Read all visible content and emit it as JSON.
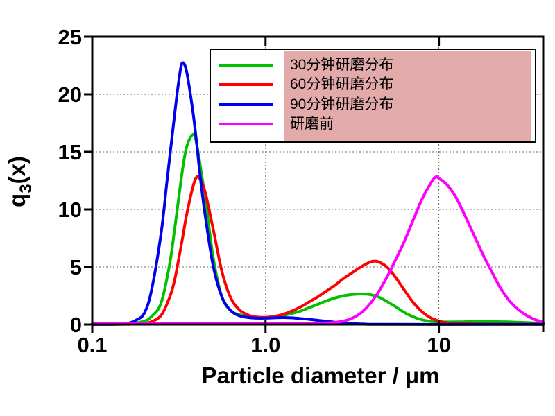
{
  "chart_data": {
    "type": "line",
    "title": "",
    "xlabel": "Particle diameter / μm",
    "ylabel": "q3(x)",
    "ylabel_parts": {
      "base": "q",
      "sub": "3",
      "rest": "(x)"
    },
    "xscale": "log",
    "xlim": [
      0.1,
      40
    ],
    "ylim": [
      0,
      25
    ],
    "xticks": [
      {
        "value": 0.1,
        "label": "0.1"
      },
      {
        "value": 1.0,
        "label": "1.0"
      },
      {
        "value": 10,
        "label": "10"
      }
    ],
    "yticks": [
      {
        "value": 0,
        "label": "0"
      },
      {
        "value": 5,
        "label": "5"
      },
      {
        "value": 10,
        "label": "10"
      },
      {
        "value": 15,
        "label": "15"
      },
      {
        "value": 20,
        "label": "20"
      },
      {
        "value": 25,
        "label": "25"
      }
    ],
    "grid": {
      "style": "dotted",
      "color": "#666666",
      "y_values": [
        5,
        10,
        15,
        20
      ],
      "x_values": [
        1.0,
        10
      ]
    },
    "legend": {
      "position": "top-inside",
      "highlight_color": "#E3AAAA",
      "items": [
        {
          "label": "30分钟研磨分布",
          "color": "#00C000"
        },
        {
          "label": "60分钟研磨分布",
          "color": "#FF0000"
        },
        {
          "label": "90分钟研磨分布",
          "color": "#0000EE"
        },
        {
          "label": "研磨前",
          "color": "#FF00FF"
        }
      ]
    },
    "series": [
      {
        "name": "30分钟研磨分布",
        "color": "#00C000",
        "points": [
          [
            0.1,
            0.02
          ],
          [
            0.16,
            0.05
          ],
          [
            0.2,
            0.3
          ],
          [
            0.22,
            0.7
          ],
          [
            0.25,
            1.9
          ],
          [
            0.28,
            5.3
          ],
          [
            0.3,
            8.5
          ],
          [
            0.33,
            13.2
          ],
          [
            0.35,
            15.4
          ],
          [
            0.38,
            16.5
          ],
          [
            0.4,
            15.7
          ],
          [
            0.45,
            10.8
          ],
          [
            0.5,
            5.7
          ],
          [
            0.56,
            2.4
          ],
          [
            0.63,
            1.2
          ],
          [
            0.71,
            0.85
          ],
          [
            0.8,
            0.68
          ],
          [
            0.89,
            0.62
          ],
          [
            1.0,
            0.6
          ],
          [
            1.12,
            0.65
          ],
          [
            1.26,
            0.78
          ],
          [
            1.41,
            0.95
          ],
          [
            1.58,
            1.15
          ],
          [
            1.78,
            1.45
          ],
          [
            2.0,
            1.75
          ],
          [
            2.24,
            2.05
          ],
          [
            2.51,
            2.3
          ],
          [
            2.82,
            2.5
          ],
          [
            3.16,
            2.6
          ],
          [
            3.55,
            2.65
          ],
          [
            3.98,
            2.6
          ],
          [
            4.47,
            2.4
          ],
          [
            5.01,
            2.0
          ],
          [
            5.62,
            1.55
          ],
          [
            6.31,
            1.05
          ],
          [
            7.08,
            0.68
          ],
          [
            7.94,
            0.42
          ],
          [
            8.91,
            0.28
          ],
          [
            10,
            0.22
          ],
          [
            12.6,
            0.22
          ],
          [
            15.8,
            0.25
          ],
          [
            20,
            0.25
          ],
          [
            25.1,
            0.22
          ],
          [
            31.6,
            0.17
          ],
          [
            40,
            0.1
          ]
        ]
      },
      {
        "name": "60分钟研磨分布",
        "color": "#FF0000",
        "points": [
          [
            0.1,
            0.01
          ],
          [
            0.18,
            0.03
          ],
          [
            0.2,
            0.08
          ],
          [
            0.22,
            0.25
          ],
          [
            0.25,
            0.8
          ],
          [
            0.28,
            2.4
          ],
          [
            0.3,
            4.0
          ],
          [
            0.33,
            7.3
          ],
          [
            0.35,
            9.5
          ],
          [
            0.38,
            11.9
          ],
          [
            0.4,
            12.8
          ],
          [
            0.42,
            12.6
          ],
          [
            0.45,
            11.4
          ],
          [
            0.5,
            8.2
          ],
          [
            0.56,
            4.6
          ],
          [
            0.63,
            2.3
          ],
          [
            0.71,
            1.25
          ],
          [
            0.8,
            0.8
          ],
          [
            0.89,
            0.65
          ],
          [
            1.0,
            0.62
          ],
          [
            1.12,
            0.7
          ],
          [
            1.26,
            0.88
          ],
          [
            1.41,
            1.15
          ],
          [
            1.58,
            1.5
          ],
          [
            1.78,
            1.95
          ],
          [
            2.0,
            2.4
          ],
          [
            2.24,
            2.9
          ],
          [
            2.51,
            3.4
          ],
          [
            2.82,
            4.0
          ],
          [
            3.16,
            4.5
          ],
          [
            3.55,
            5.0
          ],
          [
            3.98,
            5.4
          ],
          [
            4.2,
            5.5
          ],
          [
            4.47,
            5.45
          ],
          [
            5.01,
            5.0
          ],
          [
            5.62,
            4.1
          ],
          [
            6.31,
            3.0
          ],
          [
            7.08,
            1.95
          ],
          [
            7.94,
            1.15
          ],
          [
            8.91,
            0.6
          ],
          [
            10,
            0.3
          ],
          [
            11.2,
            0.14
          ],
          [
            12.6,
            0.07
          ],
          [
            15.8,
            0.04
          ],
          [
            20,
            0.03
          ],
          [
            40,
            0.02
          ]
        ]
      },
      {
        "name": "90分钟研磨分布",
        "color": "#0000EE",
        "points": [
          [
            0.1,
            0.01
          ],
          [
            0.14,
            0.03
          ],
          [
            0.16,
            0.1
          ],
          [
            0.18,
            0.4
          ],
          [
            0.2,
            1.0
          ],
          [
            0.22,
            3.0
          ],
          [
            0.25,
            8.0
          ],
          [
            0.27,
            12.5
          ],
          [
            0.3,
            18.5
          ],
          [
            0.316,
            21.2
          ],
          [
            0.33,
            22.7
          ],
          [
            0.35,
            22.0
          ],
          [
            0.38,
            18.6
          ],
          [
            0.4,
            15.8
          ],
          [
            0.42,
            12.8
          ],
          [
            0.45,
            9.3
          ],
          [
            0.5,
            5.0
          ],
          [
            0.56,
            2.4
          ],
          [
            0.63,
            1.2
          ],
          [
            0.71,
            0.75
          ],
          [
            0.8,
            0.6
          ],
          [
            0.89,
            0.55
          ],
          [
            1.0,
            0.55
          ],
          [
            1.12,
            0.58
          ],
          [
            1.26,
            0.6
          ],
          [
            1.41,
            0.58
          ],
          [
            1.58,
            0.52
          ],
          [
            1.78,
            0.45
          ],
          [
            2.0,
            0.36
          ],
          [
            2.24,
            0.28
          ],
          [
            2.51,
            0.2
          ],
          [
            2.82,
            0.13
          ],
          [
            3.16,
            0.08
          ],
          [
            3.55,
            0.04
          ],
          [
            3.98,
            0.02
          ],
          [
            5.01,
            0.01
          ],
          [
            40,
            0.01
          ]
        ]
      },
      {
        "name": "研磨前",
        "color": "#FF00FF",
        "points": [
          [
            0.1,
            0.06
          ],
          [
            0.5,
            0.06
          ],
          [
            1.0,
            0.07
          ],
          [
            1.58,
            0.08
          ],
          [
            2.0,
            0.1
          ],
          [
            2.51,
            0.18
          ],
          [
            2.82,
            0.3
          ],
          [
            3.16,
            0.55
          ],
          [
            3.55,
            1.0
          ],
          [
            3.98,
            1.75
          ],
          [
            4.47,
            2.8
          ],
          [
            5.01,
            4.1
          ],
          [
            5.62,
            5.6
          ],
          [
            6.31,
            7.2
          ],
          [
            7.08,
            9.0
          ],
          [
            7.94,
            10.8
          ],
          [
            8.91,
            12.2
          ],
          [
            9.55,
            12.8
          ],
          [
            10,
            12.7
          ],
          [
            11.2,
            12.1
          ],
          [
            12.6,
            11.0
          ],
          [
            14.1,
            9.5
          ],
          [
            15.8,
            7.9
          ],
          [
            17.8,
            6.2
          ],
          [
            20,
            4.7
          ],
          [
            22.4,
            3.3
          ],
          [
            25.1,
            2.2
          ],
          [
            28.2,
            1.4
          ],
          [
            31.6,
            0.85
          ],
          [
            35.5,
            0.45
          ],
          [
            40,
            0.2
          ]
        ]
      }
    ]
  }
}
